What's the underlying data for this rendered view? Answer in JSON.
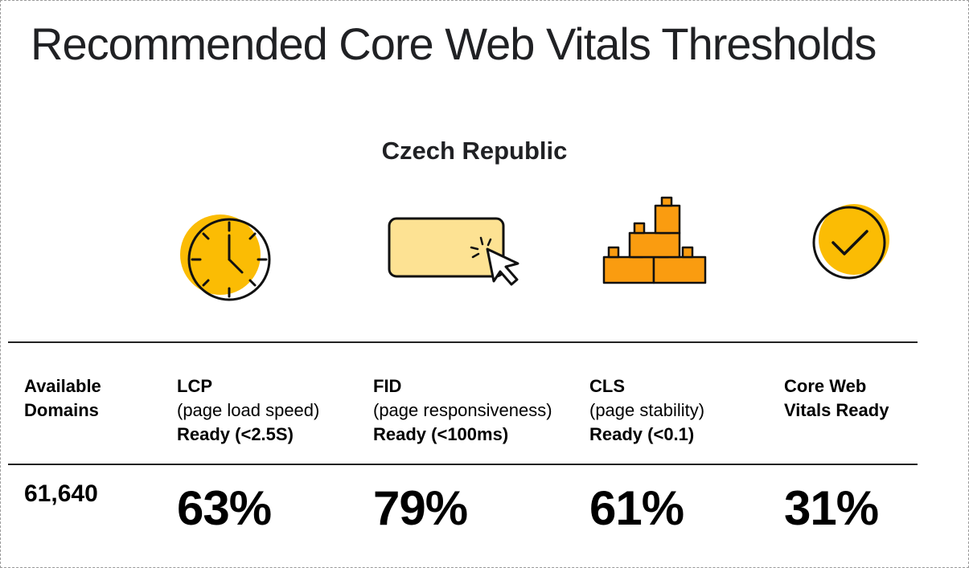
{
  "title": "Recommended Core Web Vitals Thresholds",
  "region": "Czech Republic",
  "columns": {
    "domains": {
      "line1": "Available",
      "line2": "Domains",
      "value": "61,640"
    },
    "lcp": {
      "name": "LCP",
      "desc": "(page load speed)",
      "ready": "Ready (<2.5S)",
      "value": "63%"
    },
    "fid": {
      "name": "FID",
      "desc": "(page responsiveness)",
      "ready": "Ready (<100ms)",
      "value": "79%"
    },
    "cls": {
      "name": "CLS",
      "desc": "(page stability)",
      "ready": "Ready (<0.1)",
      "value": "61%"
    },
    "cwv": {
      "line1": "Core Web",
      "line2": "Vitals Ready",
      "value": "31%"
    }
  },
  "icons": [
    "clock-icon",
    "button-click-icon",
    "blocks-icon",
    "checkmark-icon"
  ],
  "colors": {
    "yellow": "#FBBC04",
    "light_yellow": "#FDE293",
    "orange": "#FA9C10"
  }
}
